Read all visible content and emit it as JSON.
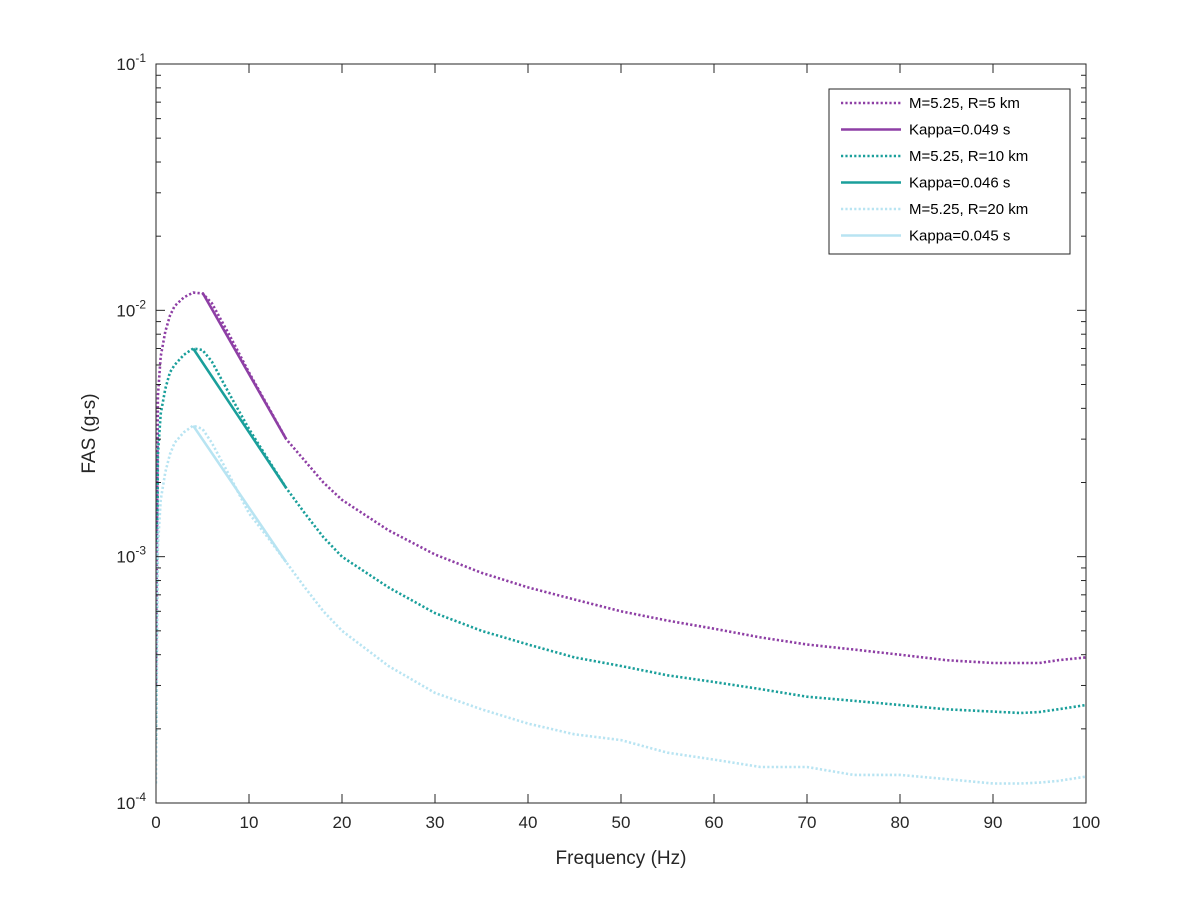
{
  "chart_data": {
    "type": "line",
    "title": "",
    "xlabel": "Frequency (Hz)",
    "ylabel": "FAS (g-s)",
    "xlim": [
      0,
      100
    ],
    "ylim": [
      0.0001,
      0.1
    ],
    "yscale": "log",
    "grid": false,
    "legend_position": "top-right",
    "x_ticks": [
      0,
      10,
      20,
      30,
      40,
      50,
      60,
      70,
      80,
      90,
      100
    ],
    "x_tick_labels": [
      "0",
      "10",
      "20",
      "30",
      "40",
      "50",
      "60",
      "70",
      "80",
      "90",
      "100"
    ],
    "y_ticks": [
      {
        "value": 0.0001,
        "base": "10",
        "exponent": "-4"
      },
      {
        "value": 0.001,
        "base": "10",
        "exponent": "-3"
      },
      {
        "value": 0.01,
        "base": "10",
        "exponent": "-2"
      },
      {
        "value": 0.1,
        "base": "10",
        "exponent": "-1"
      }
    ],
    "series": [
      {
        "name": "M=5.25, R=5 km",
        "color": "#8e3fa5",
        "style": "dotted",
        "x": [
          0,
          0.2,
          0.5,
          1,
          1.5,
          2,
          3,
          4,
          5,
          6,
          8,
          10,
          12,
          14,
          16,
          18,
          20,
          25,
          30,
          35,
          40,
          45,
          50,
          55,
          60,
          65,
          70,
          75,
          80,
          85,
          90,
          93,
          95,
          97,
          100
        ],
        "y": [
          0.0003,
          0.0045,
          0.0065,
          0.0082,
          0.0095,
          0.0104,
          0.0113,
          0.0118,
          0.0117,
          0.0107,
          0.0078,
          0.0056,
          0.0041,
          0.003,
          0.00245,
          0.002,
          0.0017,
          0.00128,
          0.00102,
          0.00086,
          0.00075,
          0.00067,
          0.0006,
          0.00055,
          0.00051,
          0.00047,
          0.00044,
          0.00042,
          0.0004,
          0.00038,
          0.00037,
          0.00037,
          0.00037,
          0.00038,
          0.00039
        ]
      },
      {
        "name": "Kappa=0.049 s",
        "color": "#8e3fa5",
        "style": "solid",
        "x": [
          5,
          14
        ],
        "y": [
          0.0118,
          0.003
        ]
      },
      {
        "name": "M=5.25, R=10 km",
        "color": "#1a9f9b",
        "style": "dotted",
        "x": [
          0,
          0.2,
          0.5,
          1,
          1.5,
          2,
          3,
          4,
          5,
          6,
          8,
          10,
          12,
          14,
          16,
          18,
          20,
          25,
          30,
          35,
          40,
          45,
          50,
          55,
          60,
          65,
          70,
          75,
          80,
          85,
          90,
          93,
          95,
          97,
          100
        ],
        "y": [
          0.00018,
          0.0026,
          0.0038,
          0.0048,
          0.0056,
          0.006,
          0.0066,
          0.007,
          0.0069,
          0.0062,
          0.0045,
          0.0033,
          0.0025,
          0.0019,
          0.0015,
          0.0012,
          0.001,
          0.00075,
          0.00059,
          0.0005,
          0.00044,
          0.00039,
          0.00036,
          0.00033,
          0.00031,
          0.00029,
          0.00027,
          0.00026,
          0.00025,
          0.00024,
          0.000235,
          0.000232,
          0.000234,
          0.00024,
          0.00025
        ]
      },
      {
        "name": "Kappa=0.046 s",
        "color": "#1a9f9b",
        "style": "solid",
        "x": [
          4,
          14
        ],
        "y": [
          0.007,
          0.0019
        ]
      },
      {
        "name": "M=5.25, R=20 km",
        "color": "#b8e4f2",
        "style": "dotted",
        "x": [
          0,
          0.2,
          0.5,
          1,
          1.5,
          2,
          3,
          4,
          5,
          6,
          8,
          10,
          12,
          14,
          16,
          18,
          20,
          25,
          30,
          35,
          40,
          45,
          50,
          55,
          60,
          65,
          70,
          75,
          80,
          85,
          90,
          93,
          95,
          97,
          100
        ],
        "y": [
          0.00012,
          0.0011,
          0.0017,
          0.0022,
          0.0026,
          0.0029,
          0.0032,
          0.0034,
          0.0033,
          0.0029,
          0.0021,
          0.0015,
          0.0012,
          0.00095,
          0.00075,
          0.0006,
          0.0005,
          0.00036,
          0.00028,
          0.00024,
          0.00021,
          0.00019,
          0.00018,
          0.00016,
          0.00015,
          0.00014,
          0.00014,
          0.00013,
          0.00013,
          0.000125,
          0.00012,
          0.00012,
          0.000121,
          0.000123,
          0.000128
        ]
      },
      {
        "name": "Kappa=0.045 s",
        "color": "#b8e4f2",
        "style": "solid",
        "x": [
          4,
          14
        ],
        "y": [
          0.0034,
          0.00095
        ]
      }
    ]
  }
}
